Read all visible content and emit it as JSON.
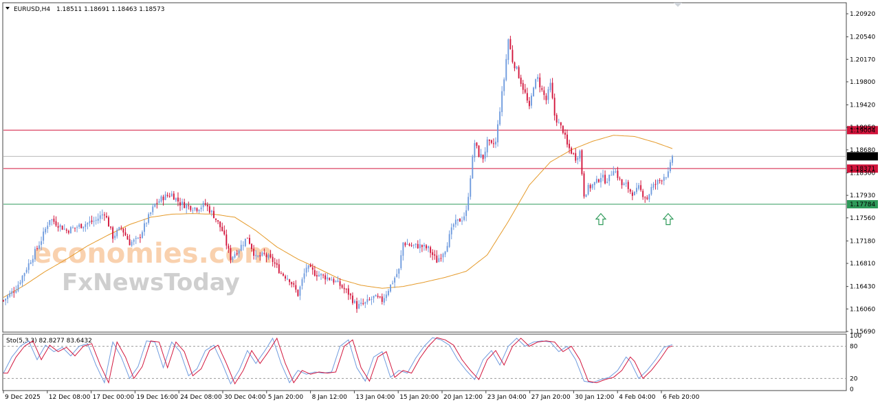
{
  "chart_data": [
    {
      "type": "candlestick",
      "header": {
        "symbol": "EURUSD,H4",
        "values": "1.18511 1.18691 1.18463 1.18573"
      },
      "ylim": [
        1.1569,
        1.2109
      ],
      "y_ticks": [
        "1.20920",
        "1.20540",
        "1.20170",
        "1.19800",
        "1.19420",
        "1.19050",
        "1.18680",
        "1.18300",
        "1.17930",
        "1.17560",
        "1.17180",
        "1.16810",
        "1.16430",
        "1.16060",
        "1.15690"
      ],
      "x_tick_labels": [
        "9 Dec 2025",
        "12 Dec 08:00",
        "17 Dec 00:00",
        "19 Dec 16:00",
        "24 Dec 08:00",
        "30 Dec 04:00",
        "5 Jan 20:00",
        "8 Jan 12:00",
        "13 Jan 04:00",
        "15 Jan 20:00",
        "20 Jan 12:00",
        "23 Jan 04:00",
        "27 Jan 20:00",
        "30 Jan 12:00",
        "4 Feb 04:00",
        "6 Feb 20:00"
      ],
      "price_lines": [
        {
          "label": "1.19004",
          "value": 1.19004,
          "color": "#d2153c"
        },
        {
          "label": "1.18573",
          "value": 1.18573,
          "color": "#000000"
        },
        {
          "label": "1.18371",
          "value": 1.18371,
          "color": "#d2153c"
        },
        {
          "label": "1.17784",
          "value": 1.17784,
          "color": "#2e9a59"
        }
      ],
      "moving_average_color": "#e59a2a",
      "bull_color": "#6f9bde",
      "bear_color": "#d2153c",
      "key_closes": [
        [
          0,
          1.162
        ],
        [
          6,
          1.164
        ],
        [
          12,
          1.168
        ],
        [
          18,
          1.172
        ],
        [
          22,
          1.1755
        ],
        [
          30,
          1.1735
        ],
        [
          38,
          1.1745
        ],
        [
          44,
          1.1752
        ],
        [
          48,
          1.1765
        ],
        [
          52,
          1.1725
        ],
        [
          56,
          1.174
        ],
        [
          60,
          1.1715
        ],
        [
          64,
          1.172
        ],
        [
          68,
          1.175
        ],
        [
          72,
          1.1778
        ],
        [
          76,
          1.179
        ],
        [
          80,
          1.1795
        ],
        [
          84,
          1.178
        ],
        [
          88,
          1.1775
        ],
        [
          92,
          1.1772
        ],
        [
          96,
          1.1778
        ],
        [
          100,
          1.176
        ],
        [
          104,
          1.1735
        ],
        [
          108,
          1.169
        ],
        [
          112,
          1.1705
        ],
        [
          116,
          1.1725
        ],
        [
          120,
          1.169
        ],
        [
          124,
          1.1695
        ],
        [
          128,
          1.1685
        ],
        [
          132,
          1.1665
        ],
        [
          136,
          1.1655
        ],
        [
          140,
          1.163
        ],
        [
          144,
          1.1675
        ],
        [
          148,
          1.1665
        ],
        [
          152,
          1.166
        ],
        [
          156,
          1.1655
        ],
        [
          160,
          1.1645
        ],
        [
          164,
          1.1632
        ],
        [
          168,
          1.161
        ],
        [
          172,
          1.1615
        ],
        [
          176,
          1.1625
        ],
        [
          180,
          1.162
        ],
        [
          184,
          1.1645
        ],
        [
          188,
          1.167
        ],
        [
          190,
          1.1715
        ],
        [
          194,
          1.171
        ],
        [
          198,
          1.171
        ],
        [
          202,
          1.1705
        ],
        [
          206,
          1.1685
        ],
        [
          210,
          1.1705
        ],
        [
          214,
          1.1745
        ],
        [
          218,
          1.1755
        ],
        [
          220,
          1.1765
        ],
        [
          222,
          1.1825
        ],
        [
          224,
          1.188
        ],
        [
          226,
          1.186
        ],
        [
          228,
          1.1855
        ],
        [
          230,
          1.188
        ],
        [
          232,
          1.1875
        ],
        [
          234,
          1.188
        ],
        [
          236,
          1.1935
        ],
        [
          238,
          1.1985
        ],
        [
          240,
          1.205
        ],
        [
          242,
          1.2015
        ],
        [
          244,
          1.2
        ],
        [
          246,
          1.198
        ],
        [
          248,
          1.196
        ],
        [
          250,
          1.1935
        ],
        [
          252,
          1.1975
        ],
        [
          254,
          1.1985
        ],
        [
          256,
          1.1965
        ],
        [
          258,
          1.195
        ],
        [
          260,
          1.1975
        ],
        [
          262,
          1.1925
        ],
        [
          264,
          1.191
        ],
        [
          266,
          1.19
        ],
        [
          268,
          1.1875
        ],
        [
          270,
          1.1865
        ],
        [
          272,
          1.1855
        ],
        [
          274,
          1.1865
        ],
        [
          276,
          1.1795
        ],
        [
          278,
          1.1805
        ],
        [
          280,
          1.181
        ],
        [
          282,
          1.1815
        ],
        [
          284,
          1.1825
        ],
        [
          286,
          1.1818
        ],
        [
          288,
          1.1822
        ],
        [
          290,
          1.1838
        ],
        [
          292,
          1.1825
        ],
        [
          294,
          1.181
        ],
        [
          296,
          1.181
        ],
        [
          298,
          1.18
        ],
        [
          300,
          1.1795
        ],
        [
          302,
          1.1805
        ],
        [
          304,
          1.1795
        ],
        [
          306,
          1.1788
        ],
        [
          308,
          1.1805
        ],
        [
          310,
          1.1812
        ],
        [
          312,
          1.1818
        ],
        [
          314,
          1.1825
        ],
        [
          316,
          1.1828
        ],
        [
          318,
          1.1857
        ]
      ],
      "ma_points": [
        [
          0,
          1.1625
        ],
        [
          10,
          1.1645
        ],
        [
          20,
          1.1668
        ],
        [
          30,
          1.1688
        ],
        [
          40,
          1.171
        ],
        [
          50,
          1.1728
        ],
        [
          60,
          1.1745
        ],
        [
          70,
          1.1757
        ],
        [
          80,
          1.1762
        ],
        [
          90,
          1.1763
        ],
        [
          100,
          1.1762
        ],
        [
          110,
          1.1757
        ],
        [
          120,
          1.1735
        ],
        [
          130,
          1.1708
        ],
        [
          140,
          1.1688
        ],
        [
          150,
          1.1672
        ],
        [
          160,
          1.1655
        ],
        [
          170,
          1.1645
        ],
        [
          180,
          1.164
        ],
        [
          190,
          1.1643
        ],
        [
          200,
          1.165
        ],
        [
          210,
          1.1658
        ],
        [
          220,
          1.1668
        ],
        [
          230,
          1.1695
        ],
        [
          240,
          1.175
        ],
        [
          250,
          1.181
        ],
        [
          260,
          1.1848
        ],
        [
          270,
          1.1868
        ],
        [
          280,
          1.1882
        ],
        [
          290,
          1.1892
        ],
        [
          300,
          1.189
        ],
        [
          310,
          1.188
        ],
        [
          318,
          1.187
        ]
      ],
      "arrows_at": [
        284,
        316
      ],
      "arrow_color": "#2e9a59",
      "candle_count": 319
    },
    {
      "type": "line",
      "header": "Sto(5,3,3) 82.8277 83.6432",
      "ylim": [
        0,
        100
      ],
      "y_ticks": [
        "100",
        "80",
        "20",
        "0"
      ],
      "levels": [
        80,
        20
      ],
      "series_colors": [
        "#6f9bde",
        "#d2153c"
      ],
      "oscillator_points": [
        [
          0,
          30
        ],
        [
          4,
          60
        ],
        [
          8,
          80
        ],
        [
          12,
          90
        ],
        [
          16,
          55
        ],
        [
          20,
          82
        ],
        [
          24,
          70
        ],
        [
          28,
          78
        ],
        [
          32,
          62
        ],
        [
          36,
          80
        ],
        [
          40,
          85
        ],
        [
          44,
          45
        ],
        [
          48,
          12
        ],
        [
          52,
          88
        ],
        [
          56,
          60
        ],
        [
          60,
          20
        ],
        [
          64,
          42
        ],
        [
          68,
          90
        ],
        [
          72,
          88
        ],
        [
          76,
          40
        ],
        [
          80,
          88
        ],
        [
          84,
          70
        ],
        [
          88,
          25
        ],
        [
          92,
          38
        ],
        [
          96,
          72
        ],
        [
          100,
          82
        ],
        [
          104,
          48
        ],
        [
          108,
          10
        ],
        [
          112,
          35
        ],
        [
          116,
          72
        ],
        [
          120,
          48
        ],
        [
          124,
          70
        ],
        [
          128,
          95
        ],
        [
          132,
          48
        ],
        [
          136,
          12
        ],
        [
          140,
          35
        ],
        [
          144,
          28
        ],
        [
          148,
          32
        ],
        [
          152,
          30
        ],
        [
          156,
          32
        ],
        [
          160,
          80
        ],
        [
          164,
          92
        ],
        [
          168,
          40
        ],
        [
          172,
          15
        ],
        [
          176,
          60
        ],
        [
          180,
          70
        ],
        [
          184,
          22
        ],
        [
          188,
          35
        ],
        [
          192,
          30
        ],
        [
          196,
          58
        ],
        [
          200,
          80
        ],
        [
          204,
          96
        ],
        [
          208,
          92
        ],
        [
          212,
          82
        ],
        [
          216,
          55
        ],
        [
          220,
          35
        ],
        [
          224,
          18
        ],
        [
          228,
          55
        ],
        [
          232,
          72
        ],
        [
          236,
          45
        ],
        [
          240,
          80
        ],
        [
          244,
          95
        ],
        [
          248,
          80
        ],
        [
          252,
          88
        ],
        [
          256,
          90
        ],
        [
          260,
          88
        ],
        [
          264,
          70
        ],
        [
          268,
          80
        ],
        [
          272,
          55
        ],
        [
          276,
          15
        ],
        [
          280,
          12
        ],
        [
          284,
          18
        ],
        [
          288,
          22
        ],
        [
          292,
          35
        ],
        [
          296,
          60
        ],
        [
          298,
          52
        ],
        [
          302,
          20
        ],
        [
          306,
          35
        ],
        [
          310,
          55
        ],
        [
          314,
          78
        ],
        [
          318,
          83
        ]
      ]
    }
  ],
  "watermark": {
    "line1": "economies.com",
    "line2": "FxNewsToday"
  }
}
